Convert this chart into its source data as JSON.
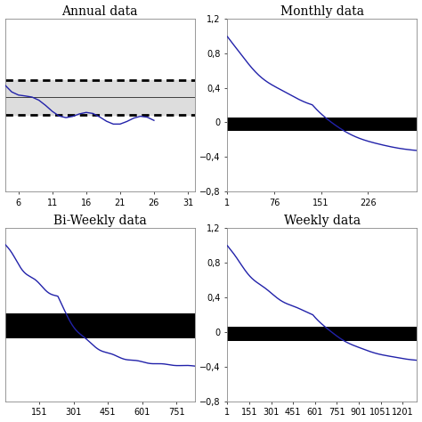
{
  "panels": [
    {
      "title": "Annual data",
      "x_ticks": [
        6,
        11,
        16,
        21,
        26,
        31
      ],
      "x_min": 4,
      "x_max": 32,
      "y_lim": [
        -0.3,
        0.25
      ],
      "show_y_ticks": false,
      "y_ticks": [],
      "style": "annual",
      "conf_band_upper": 0.055,
      "conf_band_lower": -0.055,
      "zero_level": 0.0
    },
    {
      "title": "Monthly data",
      "x_ticks": [
        1,
        76,
        151,
        226
      ],
      "x_min": 1,
      "x_max": 305,
      "y_lim": [
        -0.8,
        1.2
      ],
      "show_y_ticks": true,
      "y_ticks": [
        -0.8,
        -0.4,
        0,
        0.4,
        0.8,
        1.2
      ],
      "style": "monthly",
      "conf_band_upper": 0.06,
      "conf_band_lower": -0.1,
      "zero_level": 0.0
    },
    {
      "title": "Bi-Weekly data",
      "x_ticks": [
        151,
        301,
        451,
        601,
        751
      ],
      "x_min": 1,
      "x_max": 830,
      "y_lim": [
        -0.35,
        0.42
      ],
      "show_y_ticks": false,
      "y_ticks": [],
      "style": "biweekly",
      "conf_band_upper": 0.04,
      "conf_band_lower": -0.07,
      "zero_level": 0.0
    },
    {
      "title": "Weekly data",
      "x_ticks": [
        1,
        151,
        301,
        451,
        601,
        751,
        901,
        1051,
        1201
      ],
      "x_min": 1,
      "x_max": 1300,
      "y_lim": [
        -0.8,
        1.2
      ],
      "show_y_ticks": true,
      "y_ticks": [
        -0.8,
        -0.4,
        0,
        0.4,
        0.8,
        1.2
      ],
      "style": "weekly",
      "conf_band_upper": 0.06,
      "conf_band_lower": -0.1,
      "zero_level": 0.0
    }
  ],
  "line_color": "#2222aa",
  "line_width": 1.0,
  "background_color": "#ffffff",
  "title_fontsize": 10,
  "tick_fontsize": 7
}
